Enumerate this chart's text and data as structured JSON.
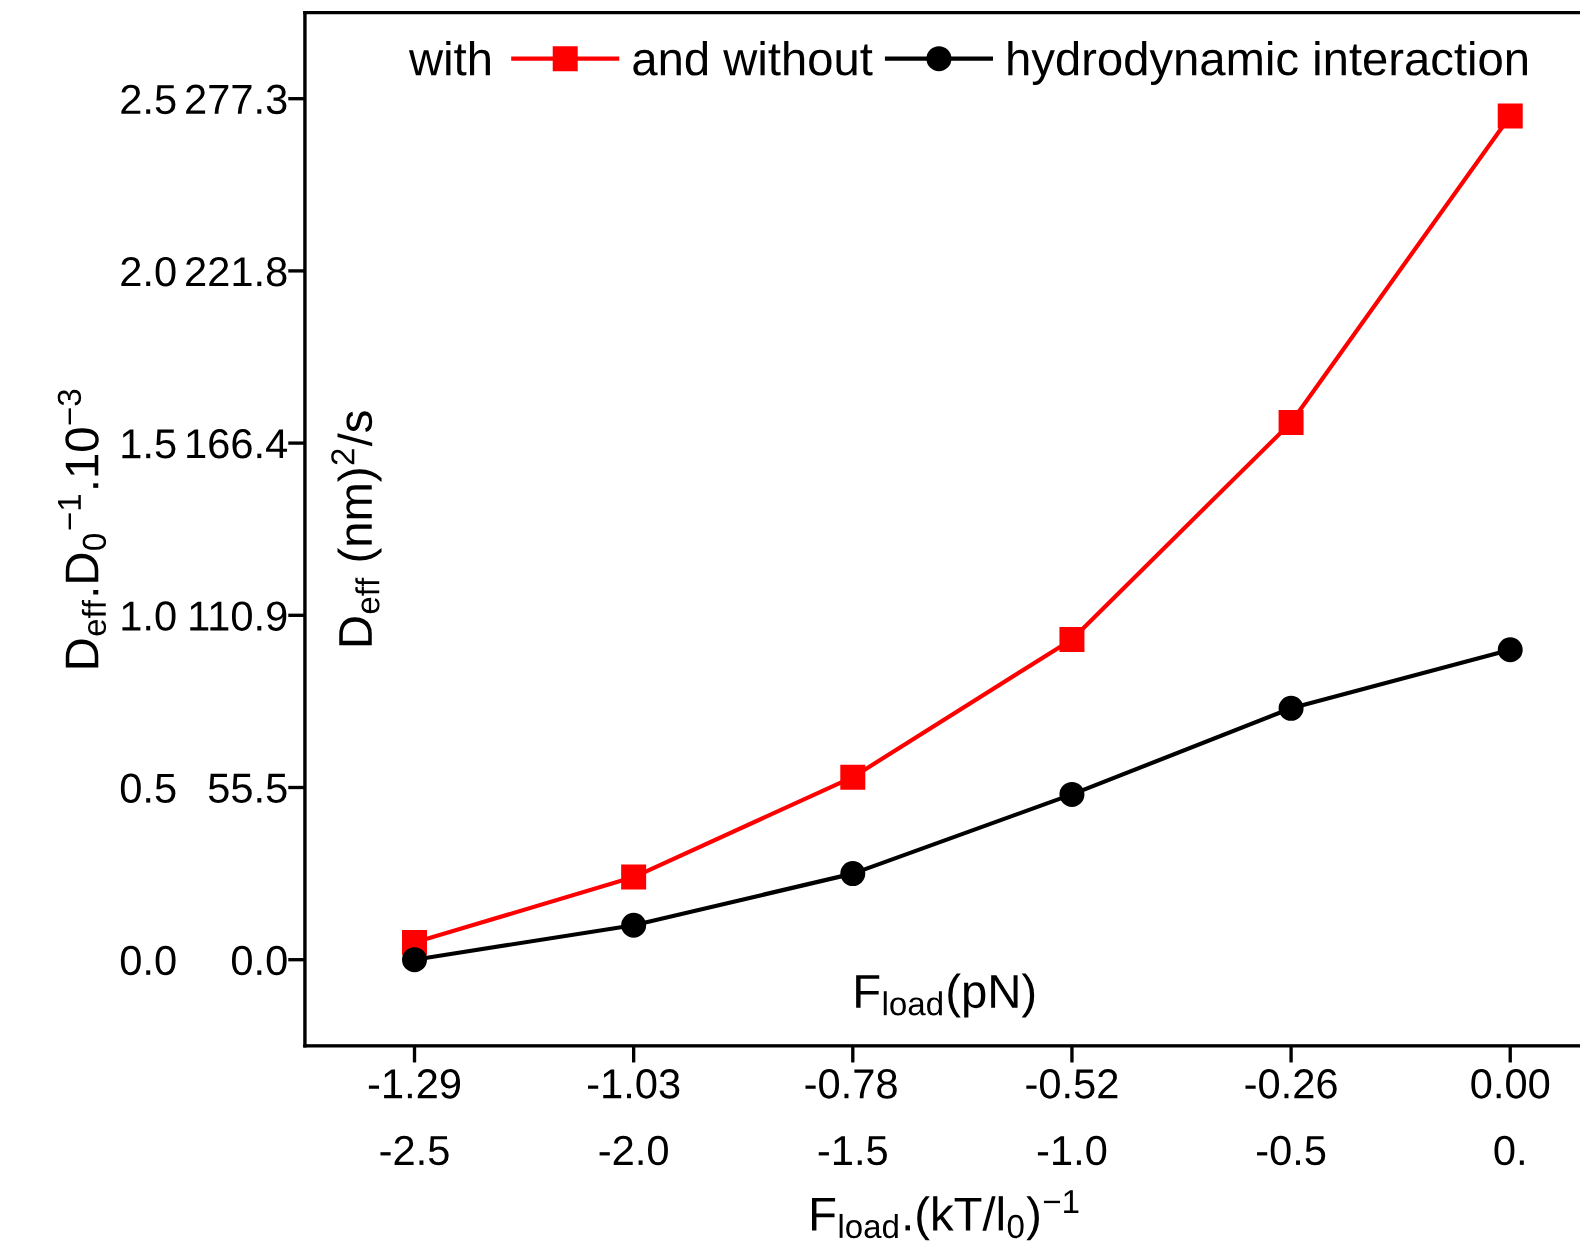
{
  "chart_data": {
    "type": "line",
    "xlabel": "F$_{load}$.(kT/l$_{0}$)$^{−1}$",
    "ylabel": "D$_{eff}$.D$_{0}$$^{−1}$.10$^{−3}$",
    "y2label": "D$_{eff}$ (nm)$^{2}$/s",
    "x2label": "F$_{load}$(pN)",
    "annotations": [
      "with"
    ],
    "x": [
      -2.5,
      -2.0,
      -1.5,
      -1.0,
      -0.5,
      0.0
    ],
    "series": [
      {
        "name": "and without",
        "color": "#ff0000",
        "marker": "square",
        "values": [
          0.05,
          0.24,
          0.53,
          0.93,
          1.56,
          2.45
        ]
      },
      {
        "name": "hydrodynamic interaction",
        "color": "#000000",
        "marker": "circle",
        "values": [
          0.0,
          0.1,
          0.25,
          0.48,
          0.73,
          0.9
        ]
      }
    ],
    "xlim": [
      -2.75,
      0.17
    ],
    "xticks": [
      -2.5,
      {
        "value": -2,
        "label": "-2.0"
      },
      -1.5,
      {
        "value": -1,
        "label": "-1.0"
      },
      -0.5,
      {
        "value": 0,
        "label": "0."
      }
    ],
    "x2lim": [
      -1.419,
      0.0877
    ],
    "x2ticks": [
      {
        "value": -1.29,
        "label": "-1.29"
      },
      {
        "value": -1.032,
        "label": "-1.03"
      },
      {
        "value": -0.776,
        "label": "-0.78"
      },
      {
        "value": -0.516,
        "label": "-0.52"
      },
      {
        "value": -0.258,
        "label": "-0.26"
      },
      {
        "value": 0,
        "label": "0.00"
      }
    ],
    "ylim": [
      -0.25,
      2.75
    ],
    "yticks": [
      {
        "value": 0,
        "label": "0.0"
      },
      0.5,
      {
        "value": 1,
        "label": "1.0"
      },
      1.5,
      {
        "value": 2,
        "label": "2.0"
      },
      2.5
    ],
    "y2lim": [
      -27.7,
      305.0
    ],
    "y2ticks": [
      {
        "value": 0,
        "label": "0.0"
      },
      55.5,
      110.9,
      166.4,
      221.8,
      277.3
    ],
    "legend": "top",
    "grid": false,
    "line_style": "solid"
  }
}
